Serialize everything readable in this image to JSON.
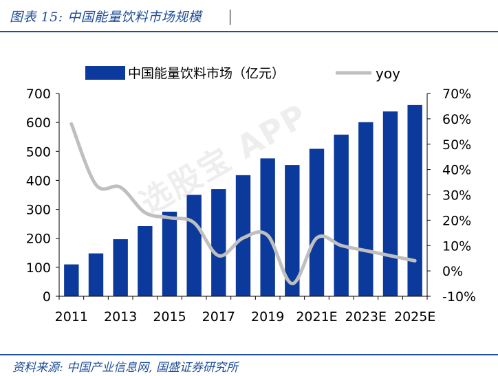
{
  "header": {
    "title": "图表 15:  中国能量饮料市场规模"
  },
  "footer": {
    "source": "资料来源:  中国产业信息网, 国盛证券研究所"
  },
  "watermark": {
    "text": "选股宝 APP"
  },
  "colors": {
    "bar": "#0b3a9c",
    "line": "#bfbfbf",
    "accent": "#1f4e9a"
  },
  "chart_data": {
    "type": "bar",
    "categories": [
      "2011",
      "2012",
      "2013",
      "2014",
      "2015",
      "2016",
      "2017",
      "2018",
      "2019",
      "2020",
      "2021E",
      "2022E",
      "2023E",
      "2024E",
      "2025E"
    ],
    "x_tick_labels": [
      "2011",
      "2013",
      "2015",
      "2017",
      "2019",
      "2021E",
      "2023E",
      "2025E"
    ],
    "series": [
      {
        "name": "中国能量饮料市场（亿元）",
        "kind": "bar",
        "axis": "left",
        "values": [
          110,
          148,
          197,
          242,
          292,
          350,
          370,
          418,
          476,
          453,
          509,
          558,
          601,
          638,
          660
        ]
      },
      {
        "name": "yoy",
        "kind": "line",
        "axis": "right",
        "values": [
          0.58,
          0.34,
          0.33,
          0.23,
          0.21,
          0.19,
          0.06,
          0.13,
          0.14,
          -0.05,
          0.13,
          0.1,
          0.08,
          0.06,
          0.04
        ]
      }
    ],
    "left_axis": {
      "ylim": [
        0,
        700
      ],
      "ticks": [
        "0",
        "100",
        "200",
        "300",
        "400",
        "500",
        "600",
        "700"
      ]
    },
    "right_axis": {
      "ylim": [
        -0.1,
        0.7
      ],
      "ticks": [
        "-10%",
        "0%",
        "10%",
        "20%",
        "30%",
        "40%",
        "50%",
        "60%",
        "70%"
      ]
    },
    "legend": {
      "position": "top",
      "entries": [
        "中国能量饮料市场（亿元）",
        "yoy"
      ]
    },
    "grid": false
  }
}
